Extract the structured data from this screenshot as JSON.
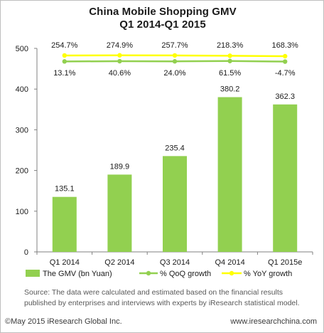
{
  "chart_data": {
    "type": "bar",
    "title": "China Mobile  Shopping GMV",
    "subtitle": "Q1 2014-Q1 2015",
    "categories": [
      "Q1 2014",
      "Q2 2014",
      "Q3 2014",
      "Q4 2014",
      "Q1 2015e"
    ],
    "ylim": [
      0,
      500
    ],
    "yticks": [
      0,
      100,
      200,
      300,
      400,
      500
    ],
    "grid": false,
    "legend_position": "bottom",
    "series": [
      {
        "name": "The GMV (bn Yuan)",
        "kind": "bar",
        "color": "#92d050",
        "values": [
          135.1,
          189.9,
          235.4,
          380.2,
          362.3
        ],
        "labels": [
          "135.1",
          "189.9",
          "235.4",
          "380.2",
          "362.3"
        ]
      },
      {
        "name": "% QoQ growth",
        "kind": "line",
        "color": "#92d050",
        "values": [
          13.1,
          40.6,
          24.0,
          61.5,
          -4.7
        ],
        "labels": [
          "13.1%",
          "40.6%",
          "24.0%",
          "61.5%",
          "-4.7%"
        ]
      },
      {
        "name": "% YoY growth",
        "kind": "line",
        "color": "#ffff00",
        "values": [
          254.7,
          274.9,
          257.7,
          218.3,
          168.3
        ],
        "labels": [
          "254.7%",
          "274.9%",
          "257.7%",
          "218.3%",
          "168.3%"
        ]
      }
    ]
  },
  "source": "Source: The data were calculated and estimated based on the financial results published by enterprises and interviews with experts by iResearch statistical model.",
  "footer": {
    "left": "©May 2015 iResearch Global Inc.",
    "right": "www.iresearchchina.com"
  }
}
